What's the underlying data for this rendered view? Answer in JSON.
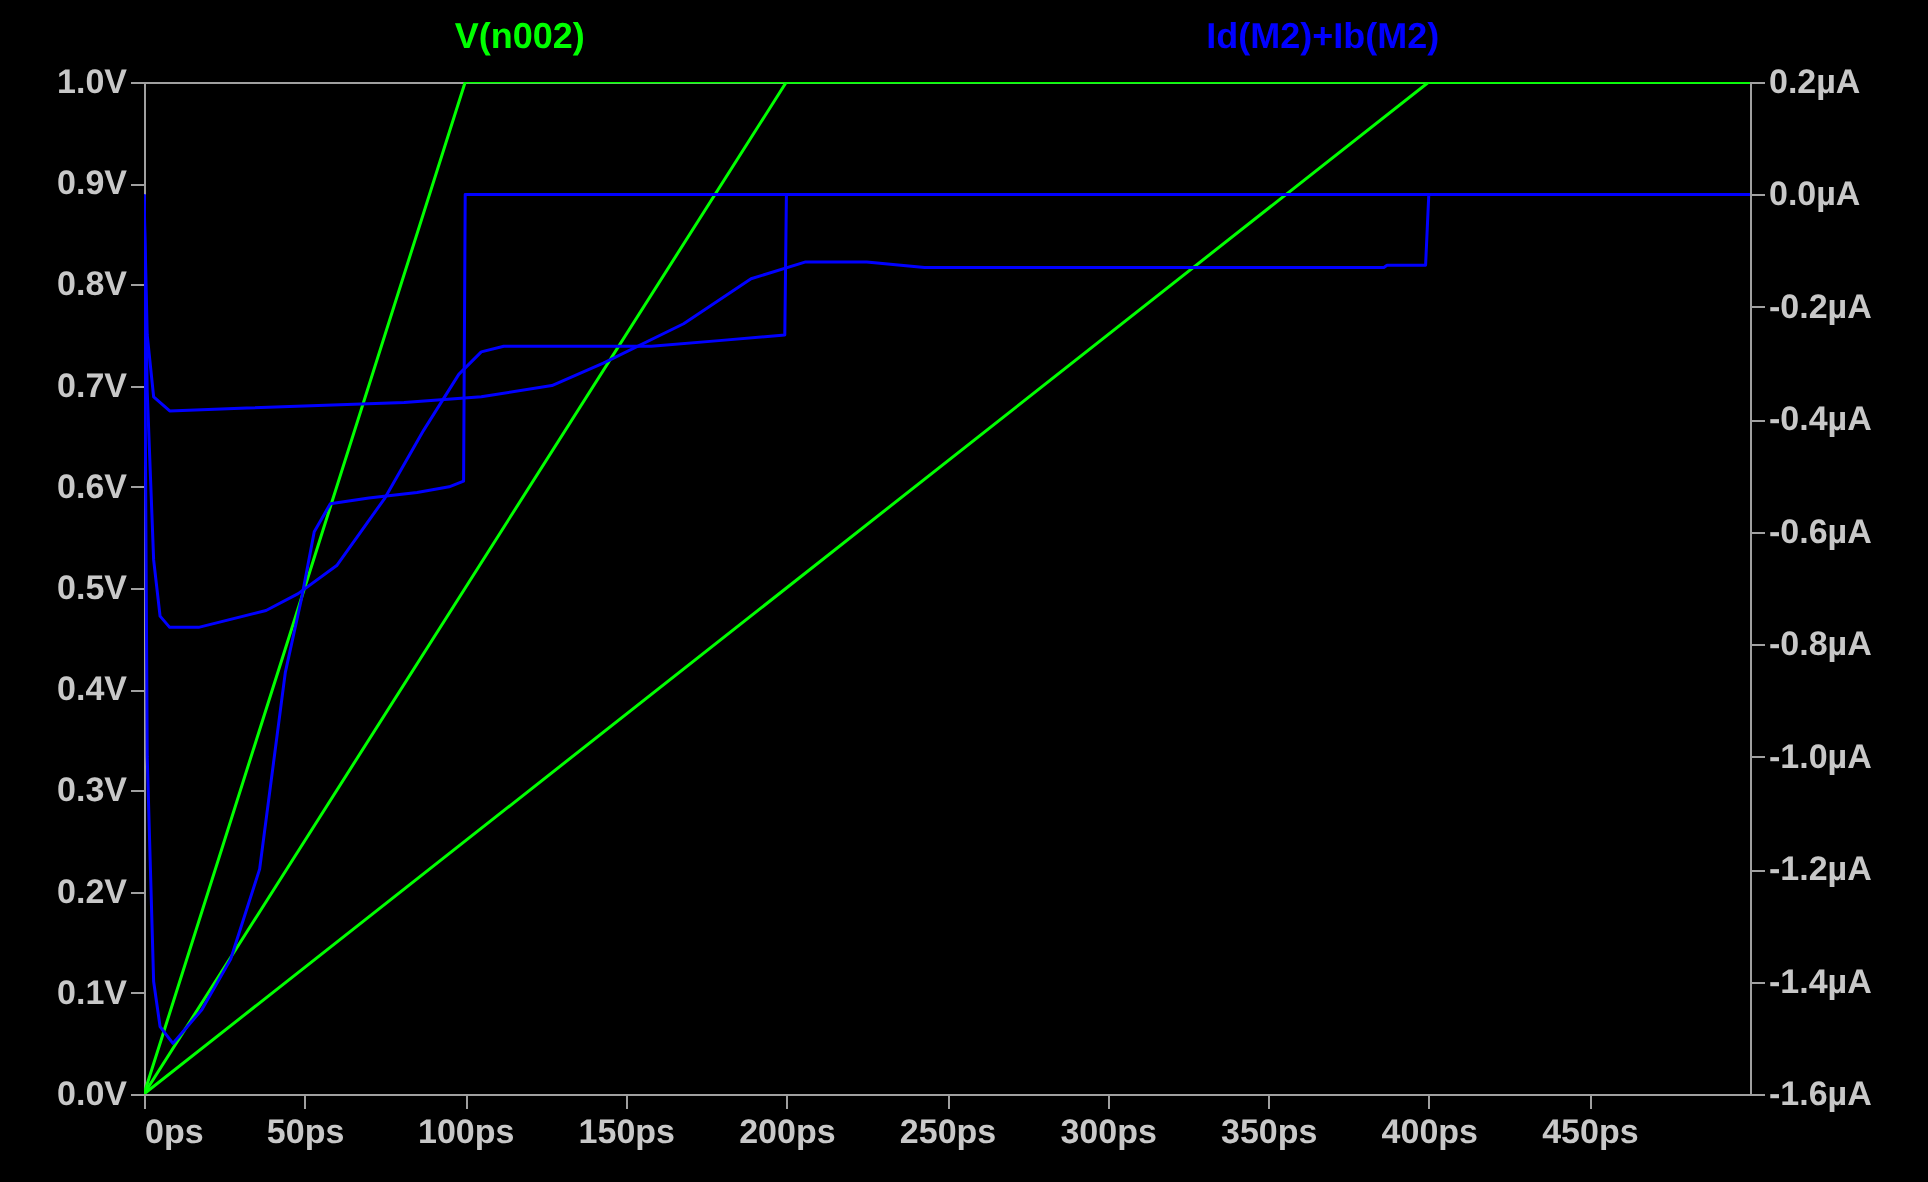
{
  "chart_data": {
    "type": "line",
    "xlim": [
      0,
      500
    ],
    "xticks": [
      {
        "value": 0,
        "label": "0ps"
      },
      {
        "value": 50,
        "label": "50ps"
      },
      {
        "value": 100,
        "label": "100ps"
      },
      {
        "value": 150,
        "label": "150ps"
      },
      {
        "value": 200,
        "label": "200ps"
      },
      {
        "value": 250,
        "label": "250ps"
      },
      {
        "value": 300,
        "label": "300ps"
      },
      {
        "value": 350,
        "label": "350ps"
      },
      {
        "value": 400,
        "label": "400ps"
      },
      {
        "value": 450,
        "label": "450ps"
      }
    ],
    "ylim": [
      0,
      1
    ],
    "yticks": [
      {
        "value": 0,
        "label": "0.0V"
      },
      {
        "value": 0.1,
        "label": "0.1V"
      },
      {
        "value": 0.2,
        "label": "0.2V"
      },
      {
        "value": 0.3,
        "label": "0.3V"
      },
      {
        "value": 0.4,
        "label": "0.4V"
      },
      {
        "value": 0.5,
        "label": "0.5V"
      },
      {
        "value": 0.6,
        "label": "0.6V"
      },
      {
        "value": 0.7,
        "label": "0.7V"
      },
      {
        "value": 0.8,
        "label": "0.8V"
      },
      {
        "value": 0.9,
        "label": "0.9V"
      },
      {
        "value": 1,
        "label": "1.0V"
      }
    ],
    "y2lim": [
      -1.6,
      0.2
    ],
    "y2ticks": [
      {
        "value": 0.2,
        "label": "0.2µA"
      },
      {
        "value": 0,
        "label": "0.0µA"
      },
      {
        "value": -0.2,
        "label": "-0.2µA"
      },
      {
        "value": -0.4,
        "label": "-0.4µA"
      },
      {
        "value": -0.6,
        "label": "-0.6µA"
      },
      {
        "value": -0.8,
        "label": "-0.8µA"
      },
      {
        "value": -1,
        "label": "-1.0µA"
      },
      {
        "value": -1.2,
        "label": "-1.2µA"
      },
      {
        "value": -1.4,
        "label": "-1.4µA"
      },
      {
        "value": -1.6,
        "label": "-1.6µA"
      }
    ],
    "series": [
      {
        "name": "V(n002)",
        "color": "#00ff00",
        "x": [
          0,
          100,
          500
        ],
        "values": [
          0,
          1,
          1
        ]
      },
      {
        "color": "#00ff00",
        "x": [
          0,
          200,
          500
        ],
        "values": [
          0,
          1,
          1
        ]
      },
      {
        "color": "#00ff00",
        "x": [
          0,
          400,
          500
        ],
        "values": [
          0,
          1,
          1
        ]
      },
      {
        "name": "Id(M2)+Ib(M2)",
        "color": "#0000ff",
        "axis": "y2",
        "x": [
          0,
          1,
          3,
          5,
          9,
          18,
          27,
          36,
          44,
          49,
          53,
          56,
          58,
          70,
          85,
          95,
          99.5,
          100,
          500
        ],
        "values": [
          0,
          -1.0,
          -1.4,
          -1.48,
          -1.51,
          -1.45,
          -1.36,
          -1.2,
          -0.85,
          -0.72,
          -0.6,
          -0.57,
          -0.55,
          -0.54,
          -0.53,
          -0.52,
          -0.51,
          0,
          0
        ]
      },
      {
        "color": "#0000ff",
        "axis": "y2",
        "x": [
          0,
          1,
          3,
          5,
          8,
          17,
          38,
          48,
          60,
          75,
          87,
          98,
          105,
          112,
          127,
          158,
          179,
          199.5,
          200,
          500
        ],
        "values": [
          0,
          -0.35,
          -0.65,
          -0.75,
          -0.77,
          -0.77,
          -0.74,
          -0.71,
          -0.66,
          -0.54,
          -0.42,
          -0.32,
          -0.28,
          -0.27,
          -0.27,
          -0.27,
          -0.26,
          -0.25,
          0,
          0
        ]
      },
      {
        "color": "#0000ff",
        "axis": "y2",
        "x": [
          0,
          1,
          3,
          8,
          32,
          81,
          105,
          127,
          143,
          168,
          189,
          206,
          225,
          243,
          386,
          387,
          399,
          400,
          500
        ],
        "values": [
          0,
          -0.25,
          -0.36,
          -0.385,
          -0.38,
          -0.37,
          -0.36,
          -0.34,
          -0.3,
          -0.23,
          -0.15,
          -0.12,
          -0.12,
          -0.13,
          -0.13,
          -0.126,
          -0.126,
          0,
          0
        ]
      }
    ]
  }
}
